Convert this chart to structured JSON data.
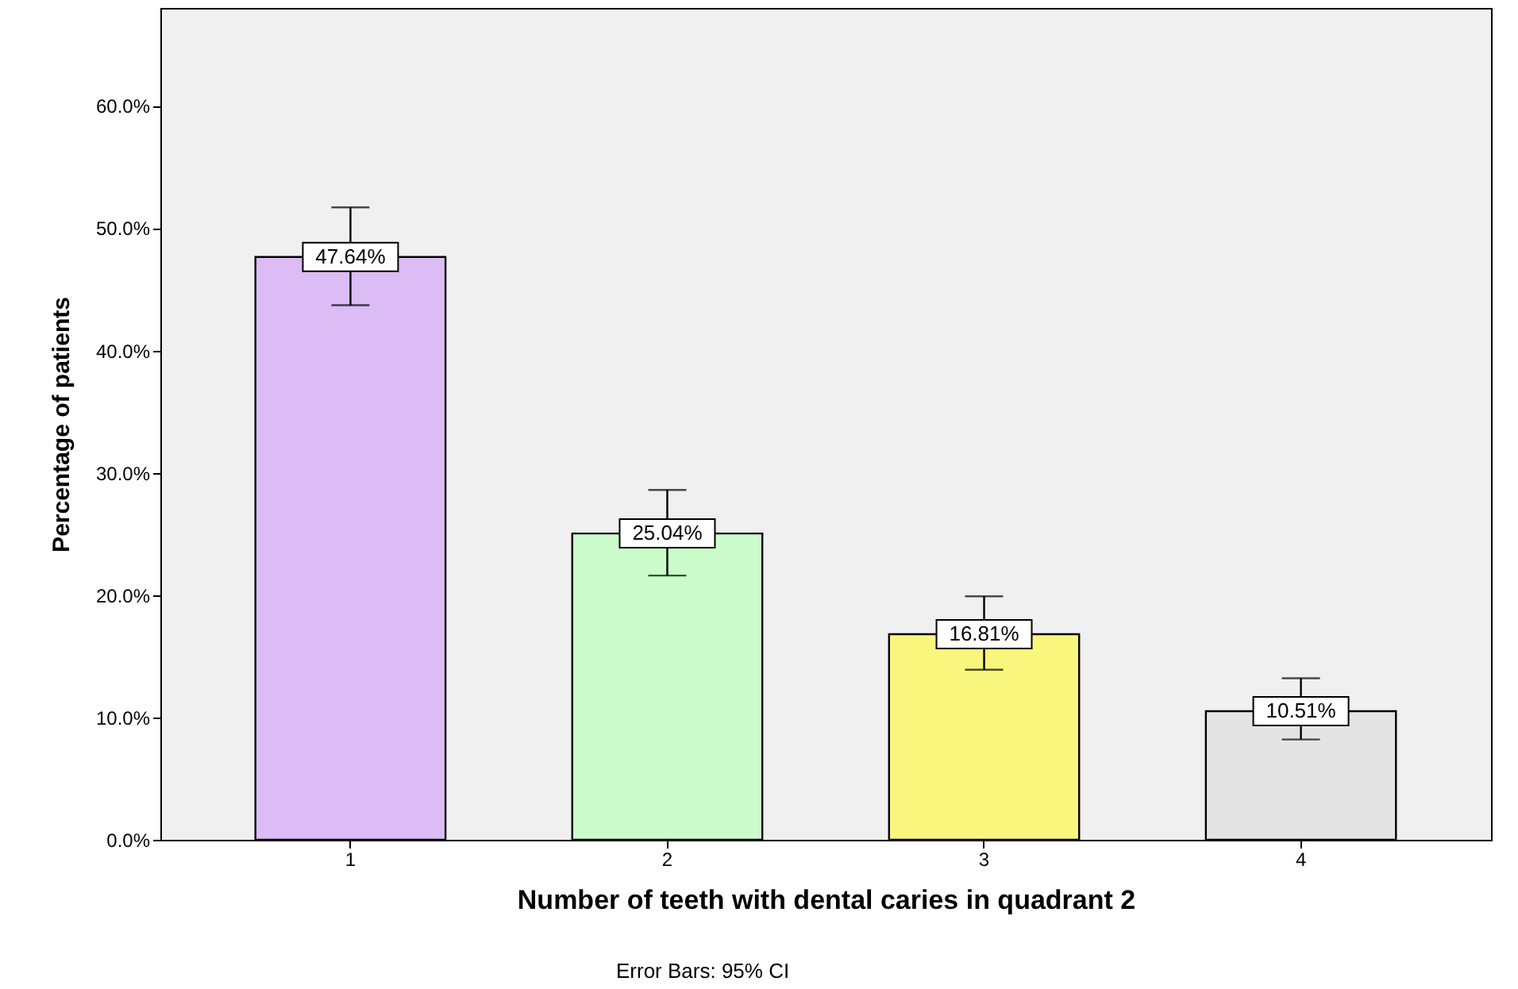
{
  "chart_data": {
    "type": "bar",
    "categories": [
      "1",
      "2",
      "3",
      "4"
    ],
    "values": [
      47.64,
      25.04,
      16.81,
      10.51
    ],
    "colors": [
      "#dcbcf4",
      "#ccfccc",
      "#f8f67c",
      "#e4e4e4"
    ],
    "errors": [
      [
        43.7,
        51.7
      ],
      [
        21.6,
        28.6
      ],
      [
        13.9,
        19.9
      ],
      [
        8.2,
        13.2
      ]
    ],
    "value_labels": [
      "47.64%",
      "25.04%",
      "16.81%",
      "10.51%"
    ],
    "xlabel": "Number of teeth with dental caries in quadrant 2",
    "ylabel": "Percentage of patients",
    "ylim": [
      0,
      68
    ],
    "yticks": [
      {
        "value": 0,
        "label": "0.0%"
      },
      {
        "value": 10,
        "label": "10.0%"
      },
      {
        "value": 20,
        "label": "20.0%"
      },
      {
        "value": 30,
        "label": "30.0%"
      },
      {
        "value": 40,
        "label": "40.0%"
      },
      {
        "value": 50,
        "label": "50.0%"
      },
      {
        "value": 60,
        "label": "60.0%"
      }
    ],
    "annotations": [
      "Error Bars: 95% CI"
    ],
    "grid": false
  }
}
